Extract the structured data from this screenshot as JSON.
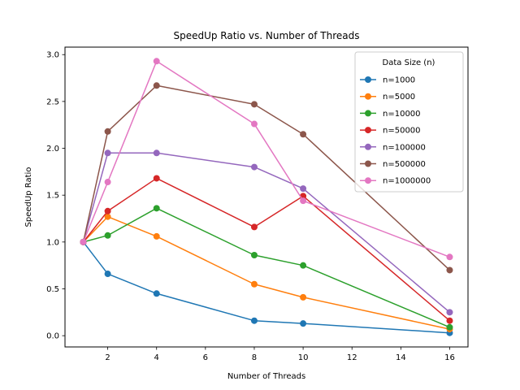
{
  "chart_data": {
    "type": "line",
    "title": "SpeedUp Ratio vs. Number of Threads",
    "xlabel": "Number of Threads",
    "ylabel": "SpeedUp Ratio",
    "xlim": [
      0.25,
      16.75
    ],
    "ylim": [
      -0.12,
      3.08
    ],
    "xticks": [
      2,
      4,
      6,
      8,
      10,
      12,
      14,
      16
    ],
    "yticks": [
      0.0,
      0.5,
      1.0,
      1.5,
      2.0,
      2.5,
      3.0
    ],
    "xtick_labels": [
      "2",
      "4",
      "6",
      "8",
      "10",
      "12",
      "14",
      "16"
    ],
    "ytick_labels": [
      "0.0",
      "0.5",
      "1.0",
      "1.5",
      "2.0",
      "2.5",
      "3.0"
    ],
    "x": [
      1,
      2,
      4,
      8,
      10,
      16
    ],
    "legend_title": "Data Size (n)",
    "legend_position": "top-right",
    "grid": false,
    "series": [
      {
        "name": "n=1000",
        "color": "#1f77b4",
        "values": [
          1.0,
          0.66,
          0.45,
          0.16,
          0.13,
          0.03
        ]
      },
      {
        "name": "n=5000",
        "color": "#ff7f0e",
        "values": [
          1.0,
          1.27,
          1.06,
          0.55,
          0.41,
          0.07
        ]
      },
      {
        "name": "n=10000",
        "color": "#2ca02c",
        "values": [
          1.0,
          1.07,
          1.36,
          0.86,
          0.75,
          0.09
        ]
      },
      {
        "name": "n=50000",
        "color": "#d62728",
        "values": [
          1.0,
          1.33,
          1.68,
          1.16,
          1.49,
          0.16
        ]
      },
      {
        "name": "n=100000",
        "color": "#9467bd",
        "values": [
          1.0,
          1.95,
          1.95,
          1.8,
          1.57,
          0.25
        ]
      },
      {
        "name": "n=500000",
        "color": "#8c564b",
        "values": [
          1.0,
          2.18,
          2.67,
          2.47,
          2.15,
          0.7
        ]
      },
      {
        "name": "n=1000000",
        "color": "#e377c2",
        "values": [
          1.0,
          1.64,
          2.93,
          2.26,
          1.44,
          0.84
        ]
      }
    ]
  }
}
